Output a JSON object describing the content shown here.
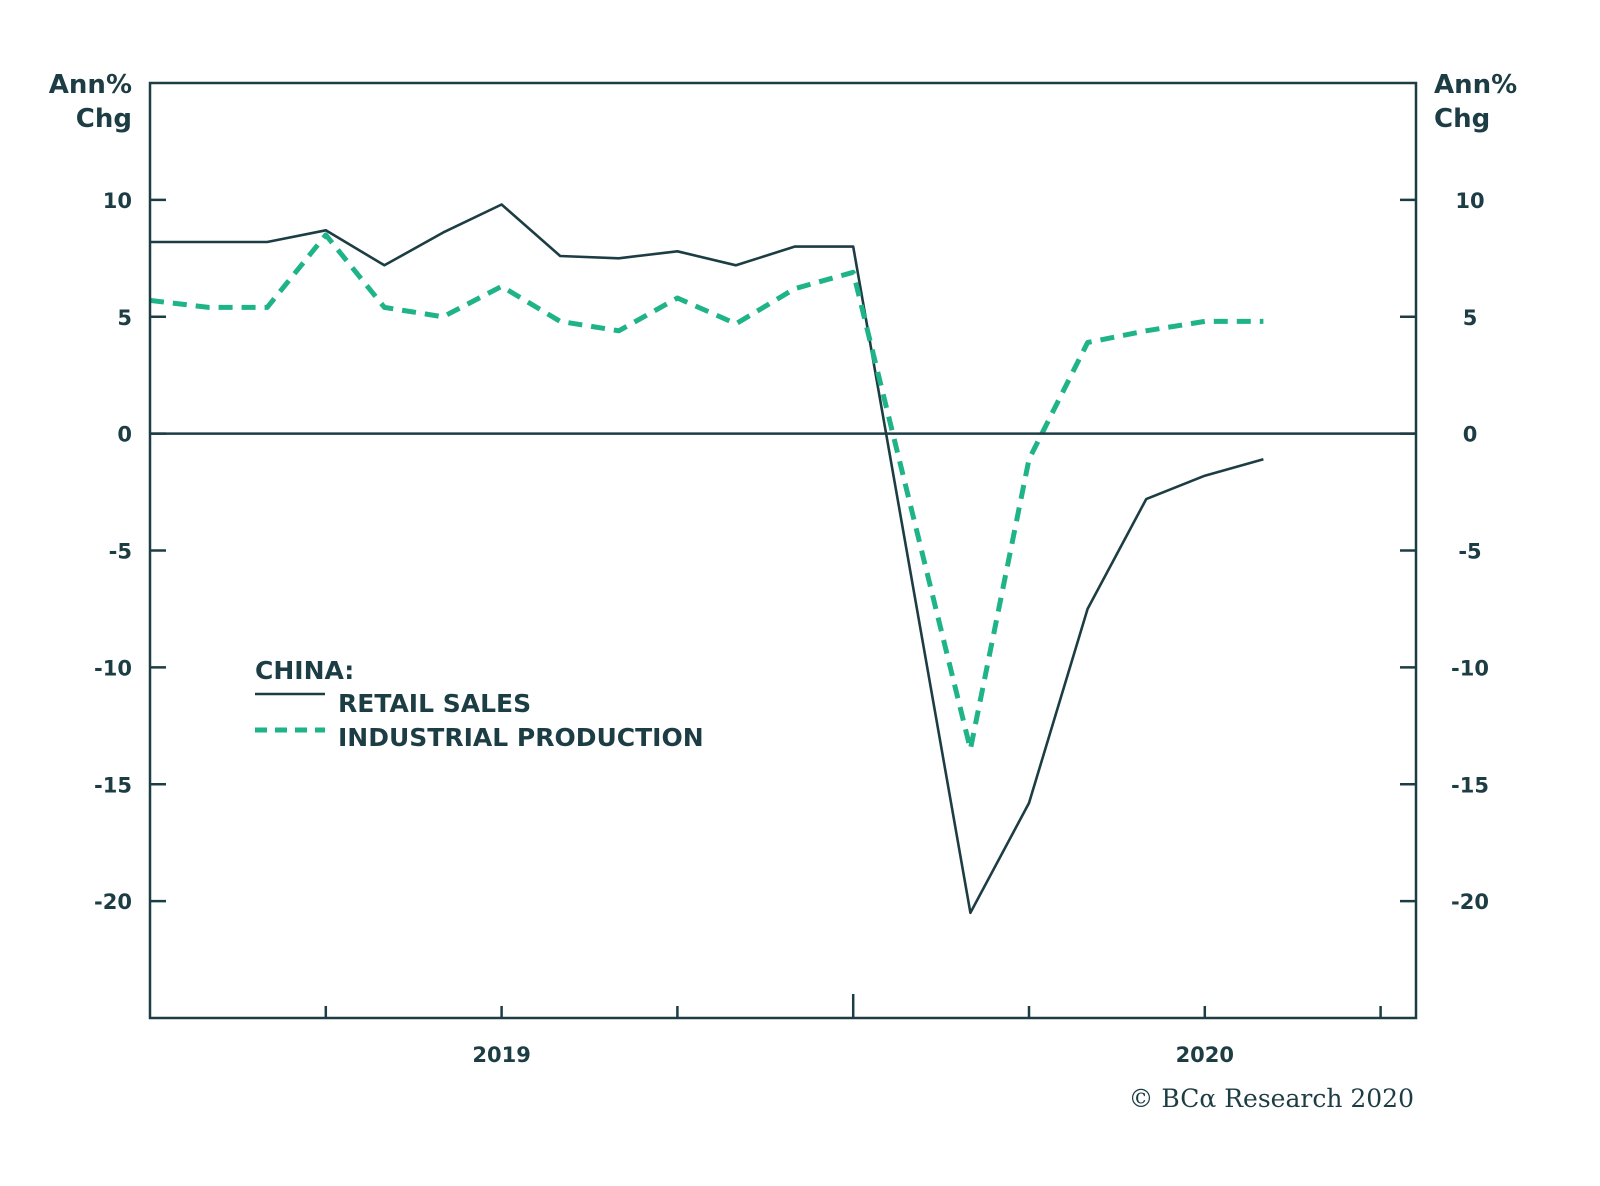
{
  "colors": {
    "frame": "#1d3d44",
    "retail_sales": "#1d3d44",
    "industrial_production": "#1fb388",
    "text": "#1d3d44"
  },
  "credit": "© BCα Research 2020",
  "chart_data": {
    "type": "line",
    "title": "",
    "xlabel": "",
    "ylabel_left": "Ann% Chg",
    "ylabel_right": "Ann% Chg",
    "ylabel_lines": [
      "Ann%",
      "Chg"
    ],
    "ylim": [
      -25,
      15
    ],
    "yticks": [
      10,
      5,
      0,
      -5,
      -10,
      -15,
      -20
    ],
    "ytick_labels": [
      "10",
      "5",
      "0",
      "-5",
      "-10",
      "-15",
      "-20"
    ],
    "x_index_range": [
      0,
      21.6
    ],
    "x_ticks_index": [
      3,
      6,
      9,
      12,
      15,
      18,
      21
    ],
    "x_major_tick_index": 12,
    "x_year_labels": [
      {
        "label": "2019",
        "index": 6
      },
      {
        "label": "2020",
        "index": 18
      }
    ],
    "zero_line": true,
    "grid": false,
    "legend": {
      "placement": "lower-left",
      "title": "CHINA:",
      "entries": [
        "RETAIL SALES",
        "INDUSTRIAL PRODUCTION"
      ]
    },
    "series": [
      {
        "name": "RETAIL SALES",
        "style": "solid",
        "points": [
          [
            0,
            8.2
          ],
          [
            1,
            8.2
          ],
          [
            2,
            8.2
          ],
          [
            3,
            8.7
          ],
          [
            4,
            7.2
          ],
          [
            5,
            8.6
          ],
          [
            6,
            9.8
          ],
          [
            7,
            7.6
          ],
          [
            8,
            7.5
          ],
          [
            9,
            7.8
          ],
          [
            10,
            7.2
          ],
          [
            11,
            8.0
          ],
          [
            12,
            8.0
          ],
          [
            14,
            -20.5
          ],
          [
            15,
            -15.8
          ],
          [
            16,
            -7.5
          ],
          [
            17,
            -2.8
          ],
          [
            18,
            -1.8
          ],
          [
            19,
            -1.1
          ]
        ]
      },
      {
        "name": "INDUSTRIAL PRODUCTION",
        "style": "dashed",
        "points": [
          [
            0,
            5.7
          ],
          [
            1,
            5.4
          ],
          [
            2,
            5.4
          ],
          [
            3,
            8.5
          ],
          [
            4,
            5.4
          ],
          [
            5,
            5.0
          ],
          [
            6,
            6.3
          ],
          [
            7,
            4.8
          ],
          [
            8,
            4.4
          ],
          [
            9,
            5.8
          ],
          [
            10,
            4.7
          ],
          [
            11,
            6.2
          ],
          [
            12,
            6.9
          ],
          [
            14,
            -13.5
          ],
          [
            15,
            -1.1
          ],
          [
            16,
            3.9
          ],
          [
            17,
            4.4
          ],
          [
            18,
            4.8
          ],
          [
            19,
            4.8
          ]
        ]
      }
    ]
  }
}
